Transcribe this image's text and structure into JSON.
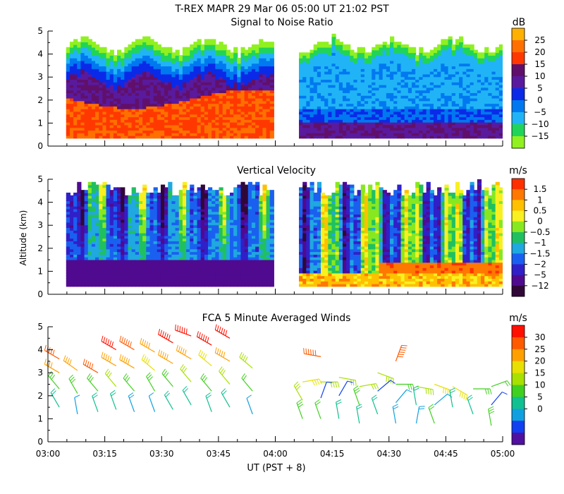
{
  "figure": {
    "header": "T-REX  MAPR 29 Mar 06  05:00 UT  21:02  PST",
    "ylabel": "Altitude (km)",
    "xlabel": "UT  (PST + 8)",
    "xticks": [
      "03:00",
      "03:15",
      "03:30",
      "03:45",
      "04:00",
      "04:15",
      "04:30",
      "04:45",
      "05:00"
    ]
  },
  "chart_data": [
    {
      "type": "heatmap",
      "title": "Signal to Noise Ratio",
      "unit": "dB",
      "x_range_ut_hours": [
        3.0,
        5.0
      ],
      "ylim": [
        0,
        5
      ],
      "yticks": [
        "0",
        "1",
        "2",
        "3",
        "4",
        "5"
      ],
      "data_gap_ut_hours": [
        4.0,
        4.1
      ],
      "colorbar": {
        "labels": [
          "25",
          "20",
          "15",
          "10",
          "5",
          "0",
          "−5",
          "−10",
          "−15"
        ],
        "colors": [
          "#ffb000",
          "#ff7000",
          "#ff3800",
          "#60106a",
          "#5a1a9e",
          "#0a2ae8",
          "#0078f0",
          "#20b4f6",
          "#20d45a",
          "#90f020"
        ]
      }
    },
    {
      "type": "heatmap",
      "title": "Vertical Velocity",
      "unit": "m/s",
      "x_range_ut_hours": [
        3.0,
        5.0
      ],
      "ylim": [
        0,
        5
      ],
      "yticks": [
        "0",
        "1",
        "2",
        "3",
        "4",
        "5"
      ],
      "data_gap_ut_hours": [
        4.0,
        4.1
      ],
      "colorbar": {
        "labels": [
          "1.5",
          "1",
          "0.5",
          "0",
          "−0.5",
          "−1",
          "−1.5",
          "−2",
          "−5",
          "−12"
        ],
        "colors": [
          "#ff3000",
          "#ff7800",
          "#ffc000",
          "#f8f020",
          "#88e820",
          "#20c060",
          "#20a8e0",
          "#1a60f0",
          "#3020c8",
          "#500a90",
          "#300838"
        ]
      }
    },
    {
      "type": "scatter",
      "title": "FCA 5 Minute Averaged Winds",
      "unit": "m/s",
      "x_range_ut_hours": [
        3.0,
        5.0
      ],
      "ylim": [
        0,
        5
      ],
      "yticks": [
        "0",
        "1",
        "2",
        "3",
        "4",
        "5"
      ],
      "colorbar": {
        "labels": [
          "30",
          "25",
          "20",
          "15",
          "10",
          "5",
          "0"
        ],
        "colors": [
          "#ff1000",
          "#ff5a00",
          "#ffa000",
          "#e8e000",
          "#a8e000",
          "#40d020",
          "#10c090",
          "#10a0e0",
          "#1040f0",
          "#5010a0"
        ]
      },
      "barbs": [
        {
          "t": 3.05,
          "z": 3.6,
          "speed": 26,
          "dir": 300
        },
        {
          "t": 3.05,
          "z": 3.0,
          "speed": 22,
          "dir": 300
        },
        {
          "t": 3.05,
          "z": 2.3,
          "speed": 15,
          "dir": 320
        },
        {
          "t": 3.05,
          "z": 1.5,
          "speed": 10,
          "dir": 330
        },
        {
          "t": 3.13,
          "z": 3.1,
          "speed": 22,
          "dir": 305
        },
        {
          "t": 3.13,
          "z": 2.1,
          "speed": 13,
          "dir": 330
        },
        {
          "t": 3.13,
          "z": 1.2,
          "speed": 6,
          "dir": 350
        },
        {
          "t": 3.22,
          "z": 3.0,
          "speed": 27,
          "dir": 300
        },
        {
          "t": 3.22,
          "z": 2.2,
          "speed": 14,
          "dir": 320
        },
        {
          "t": 3.22,
          "z": 1.3,
          "speed": 9,
          "dir": 340
        },
        {
          "t": 3.3,
          "z": 4.0,
          "speed": 29,
          "dir": 300
        },
        {
          "t": 3.3,
          "z": 3.3,
          "speed": 25,
          "dir": 300
        },
        {
          "t": 3.3,
          "z": 2.4,
          "speed": 16,
          "dir": 320
        },
        {
          "t": 3.3,
          "z": 1.4,
          "speed": 9,
          "dir": 340
        },
        {
          "t": 3.38,
          "z": 4.0,
          "speed": 28,
          "dir": 300
        },
        {
          "t": 3.38,
          "z": 3.2,
          "speed": 25,
          "dir": 300
        },
        {
          "t": 3.38,
          "z": 2.2,
          "speed": 14,
          "dir": 320
        },
        {
          "t": 3.38,
          "z": 1.3,
          "speed": 8,
          "dir": 340
        },
        {
          "t": 3.47,
          "z": 3.9,
          "speed": 24,
          "dir": 300
        },
        {
          "t": 3.47,
          "z": 3.1,
          "speed": 20,
          "dir": 310
        },
        {
          "t": 3.47,
          "z": 2.2,
          "speed": 13,
          "dir": 330
        },
        {
          "t": 3.47,
          "z": 1.3,
          "speed": 7,
          "dir": 340
        },
        {
          "t": 3.55,
          "z": 4.3,
          "speed": 29,
          "dir": 300
        },
        {
          "t": 3.55,
          "z": 3.4,
          "speed": 24,
          "dir": 300
        },
        {
          "t": 3.55,
          "z": 2.4,
          "speed": 15,
          "dir": 320
        },
        {
          "t": 3.55,
          "z": 1.4,
          "speed": 9,
          "dir": 330
        },
        {
          "t": 3.63,
          "z": 4.6,
          "speed": 30,
          "dir": 290
        },
        {
          "t": 3.63,
          "z": 3.6,
          "speed": 25,
          "dir": 300
        },
        {
          "t": 3.63,
          "z": 2.6,
          "speed": 16,
          "dir": 320
        },
        {
          "t": 3.63,
          "z": 1.6,
          "speed": 10,
          "dir": 330
        },
        {
          "t": 3.72,
          "z": 4.2,
          "speed": 29,
          "dir": 300
        },
        {
          "t": 3.72,
          "z": 3.3,
          "speed": 20,
          "dir": 310
        },
        {
          "t": 3.72,
          "z": 2.2,
          "speed": 14,
          "dir": 320
        },
        {
          "t": 3.72,
          "z": 1.3,
          "speed": 9,
          "dir": 340
        },
        {
          "t": 3.8,
          "z": 4.5,
          "speed": 30,
          "dir": 300
        },
        {
          "t": 3.8,
          "z": 3.5,
          "speed": 24,
          "dir": 300
        },
        {
          "t": 3.8,
          "z": 2.5,
          "speed": 16,
          "dir": 320
        },
        {
          "t": 3.8,
          "z": 1.5,
          "speed": 10,
          "dir": 330
        },
        {
          "t": 3.9,
          "z": 3.2,
          "speed": 18,
          "dir": 310
        },
        {
          "t": 3.9,
          "z": 2.2,
          "speed": 12,
          "dir": 320
        },
        {
          "t": 3.9,
          "z": 1.2,
          "speed": 7,
          "dir": 340
        },
        {
          "t": 4.12,
          "z": 2.6,
          "speed": 19,
          "dir": 80
        },
        {
          "t": 4.12,
          "z": 1.8,
          "speed": 17,
          "dir": 330
        },
        {
          "t": 4.12,
          "z": 1.0,
          "speed": 15,
          "dir": 340
        },
        {
          "t": 4.2,
          "z": 3.7,
          "speed": 28,
          "dir": 280
        },
        {
          "t": 4.2,
          "z": 2.6,
          "speed": 18,
          "dir": 90
        },
        {
          "t": 4.2,
          "z": 1.9,
          "speed": 4,
          "dir": 20
        },
        {
          "t": 4.2,
          "z": 1.0,
          "speed": 12,
          "dir": 340
        },
        {
          "t": 4.28,
          "z": 2.8,
          "speed": 17,
          "dir": 100
        },
        {
          "t": 4.28,
          "z": 2.0,
          "speed": 5,
          "dir": 30
        },
        {
          "t": 4.28,
          "z": 1.0,
          "speed": 11,
          "dir": 350
        },
        {
          "t": 4.37,
          "z": 2.4,
          "speed": 16,
          "dir": 80
        },
        {
          "t": 4.37,
          "z": 1.6,
          "speed": 13,
          "dir": 340
        },
        {
          "t": 4.37,
          "z": 0.8,
          "speed": 9,
          "dir": 350
        },
        {
          "t": 4.45,
          "z": 3.0,
          "speed": 18,
          "dir": 110
        },
        {
          "t": 4.45,
          "z": 2.2,
          "speed": 4,
          "dir": 50
        },
        {
          "t": 4.45,
          "z": 1.2,
          "speed": 10,
          "dir": 340
        },
        {
          "t": 4.53,
          "z": 3.5,
          "speed": 28,
          "dir": 20
        },
        {
          "t": 4.53,
          "z": 2.5,
          "speed": 14,
          "dir": 90
        },
        {
          "t": 4.53,
          "z": 1.7,
          "speed": 6,
          "dir": 40
        },
        {
          "t": 4.53,
          "z": 0.8,
          "speed": 8,
          "dir": 350
        },
        {
          "t": 4.62,
          "z": 2.4,
          "speed": 18,
          "dir": 100
        },
        {
          "t": 4.62,
          "z": 1.6,
          "speed": 10,
          "dir": 350
        },
        {
          "t": 4.62,
          "z": 0.8,
          "speed": 8,
          "dir": 10
        },
        {
          "t": 4.7,
          "z": 2.5,
          "speed": 20,
          "dir": 110
        },
        {
          "t": 4.7,
          "z": 1.6,
          "speed": 6,
          "dir": 50
        },
        {
          "t": 4.7,
          "z": 0.8,
          "speed": 12,
          "dir": 340
        },
        {
          "t": 4.78,
          "z": 2.4,
          "speed": 19,
          "dir": 120
        },
        {
          "t": 4.78,
          "z": 1.5,
          "speed": 11,
          "dir": 350
        },
        {
          "t": 4.87,
          "z": 2.3,
          "speed": 14,
          "dir": 90
        },
        {
          "t": 4.87,
          "z": 1.2,
          "speed": 10,
          "dir": 340
        },
        {
          "t": 4.95,
          "z": 2.4,
          "speed": 12,
          "dir": 70
        },
        {
          "t": 4.95,
          "z": 1.6,
          "speed": 5,
          "dir": 40
        },
        {
          "t": 4.95,
          "z": 0.7,
          "speed": 13,
          "dir": 350
        }
      ]
    }
  ]
}
